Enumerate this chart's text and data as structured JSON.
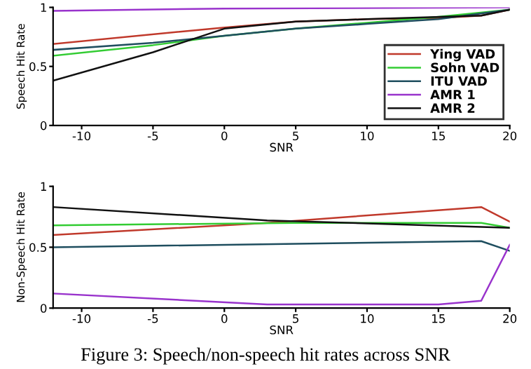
{
  "chart_data": [
    {
      "type": "line",
      "xlabel": "SNR",
      "ylabel": "Speech Hit Rate",
      "xlim": [
        -12,
        20
      ],
      "ylim": [
        0,
        1
      ],
      "xticks": [
        -10,
        -5,
        0,
        5,
        10,
        15,
        20
      ],
      "yticks": [
        0,
        0.5,
        1
      ],
      "grid": false,
      "legend": "bottom right",
      "series": [
        {
          "name": "Ying VAD",
          "color": "#c0392b",
          "x": [
            -12,
            0,
            5,
            10,
            15,
            18,
            20
          ],
          "values": [
            0.69,
            0.83,
            0.88,
            0.9,
            0.91,
            0.93,
            0.98
          ]
        },
        {
          "name": "Sohn VAD",
          "color": "#33cc33",
          "x": [
            -12,
            -5,
            0,
            5,
            10,
            15,
            20
          ],
          "values": [
            0.59,
            0.68,
            0.76,
            0.82,
            0.87,
            0.92,
            0.98
          ]
        },
        {
          "name": "ITU VAD",
          "color": "#1f4e5f",
          "x": [
            -12,
            -5,
            0,
            5,
            10,
            15,
            20
          ],
          "values": [
            0.64,
            0.7,
            0.76,
            0.82,
            0.86,
            0.9,
            0.98
          ]
        },
        {
          "name": "AMR 1",
          "color": "#9933cc",
          "x": [
            -12,
            0,
            20
          ],
          "values": [
            0.97,
            0.99,
            1.0
          ]
        },
        {
          "name": "AMR 2",
          "color": "#111111",
          "x": [
            -12,
            -5,
            0,
            5,
            10,
            18,
            20
          ],
          "values": [
            0.38,
            0.62,
            0.82,
            0.88,
            0.9,
            0.93,
            0.98
          ]
        }
      ]
    },
    {
      "type": "line",
      "xlabel": "SNR",
      "ylabel": "Non-Speech Hit Rate",
      "xlim": [
        -12,
        20
      ],
      "ylim": [
        0,
        1
      ],
      "xticks": [
        -10,
        -5,
        0,
        5,
        10,
        15,
        20
      ],
      "yticks": [
        0,
        0.5,
        1
      ],
      "grid": false,
      "legend": false,
      "annotations": [
        "Figure 3: Speech/non-speech hit rates across SNR"
      ],
      "series": [
        {
          "color": "#c0392b",
          "x": [
            -12,
            3,
            18,
            20
          ],
          "values": [
            0.6,
            0.7,
            0.83,
            0.71
          ]
        },
        {
          "color": "#33cc33",
          "x": [
            -12,
            5,
            18,
            20
          ],
          "values": [
            0.68,
            0.7,
            0.7,
            0.66
          ]
        },
        {
          "color": "#1f4e5f",
          "x": [
            -12,
            18,
            20
          ],
          "values": [
            0.5,
            0.55,
            0.47
          ]
        },
        {
          "color": "#9933cc",
          "x": [
            -12,
            3,
            15,
            18,
            20
          ],
          "values": [
            0.12,
            0.03,
            0.03,
            0.06,
            0.52
          ]
        },
        {
          "color": "#111111",
          "x": [
            -12,
            3,
            20
          ],
          "values": [
            0.83,
            0.72,
            0.66
          ]
        }
      ]
    }
  ]
}
